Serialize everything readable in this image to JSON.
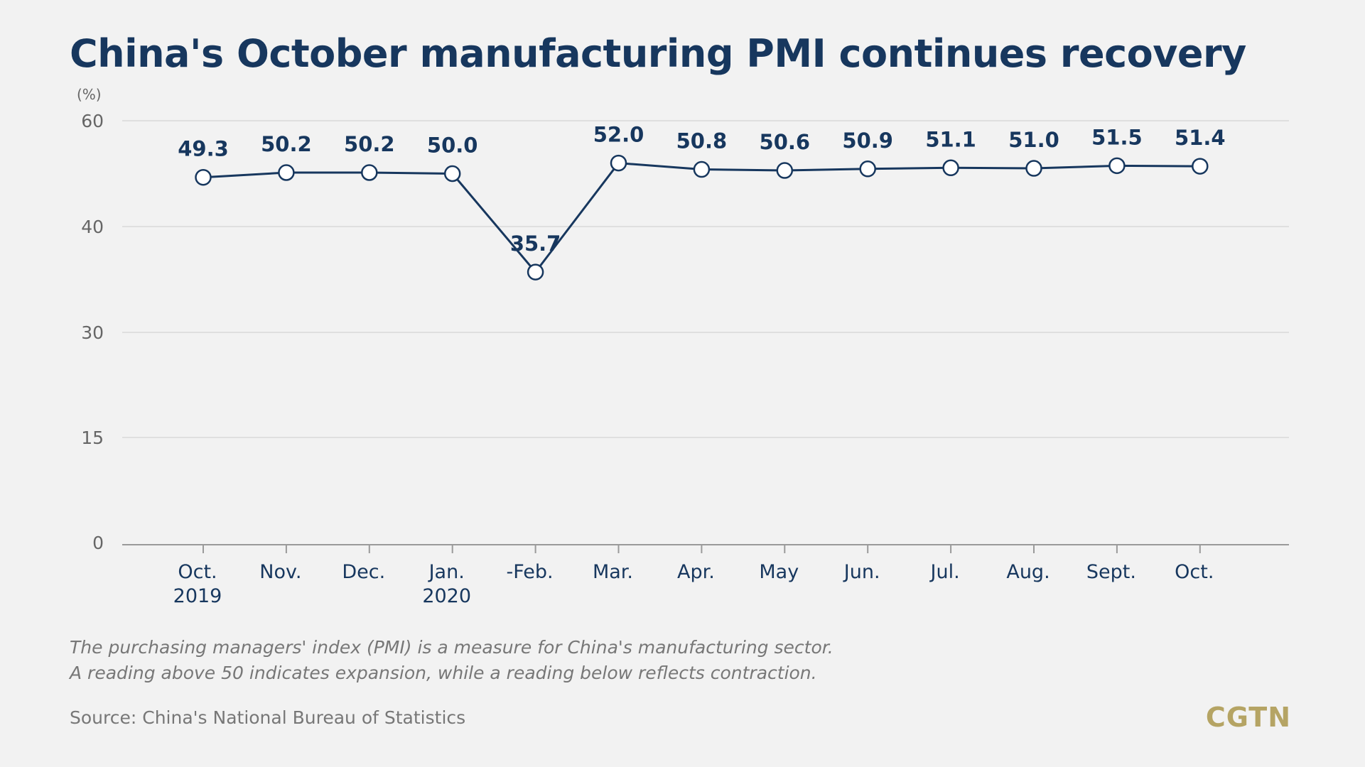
{
  "chart_data": {
    "type": "line",
    "title": "China's October manufacturing PMI continues recovery",
    "unit_label": "(%)",
    "categories": [
      [
        "Oct.",
        "2019"
      ],
      [
        "Nov."
      ],
      [
        "Dec."
      ],
      [
        "Jan.",
        "2020"
      ],
      [
        "-Feb."
      ],
      [
        "Mar."
      ],
      [
        "Apr."
      ],
      [
        "May"
      ],
      [
        "Jun."
      ],
      [
        "Jul."
      ],
      [
        "Aug."
      ],
      [
        "Sept."
      ],
      [
        "Oct."
      ]
    ],
    "values": [
      49.3,
      50.2,
      50.2,
      50.0,
      35.7,
      52.0,
      50.8,
      50.6,
      50.9,
      51.1,
      51.0,
      51.5,
      51.4
    ],
    "value_labels": [
      "49.3",
      "50.2",
      "50.2",
      "50.0",
      "35.7",
      "52.0",
      "50.8",
      "50.6",
      "50.9",
      "51.1",
      "51.0",
      "51.5",
      "51.4"
    ],
    "y_ticks": [
      0,
      15,
      30,
      40,
      60
    ],
    "y_tick_labels": [
      "0",
      "15",
      "30",
      "40",
      "60"
    ],
    "ylim": [
      0,
      60
    ],
    "grid": true,
    "line_color": "#17375e",
    "marker_fill": "#ffffff"
  },
  "notes": [
    "The purchasing managers' index (PMI) is a measure for China's manufacturing sector.",
    "A reading above 50 indicates expansion, while a reading below reflects contraction."
  ],
  "source": "Source: China's National Bureau of Statistics",
  "logo": "CGTN"
}
